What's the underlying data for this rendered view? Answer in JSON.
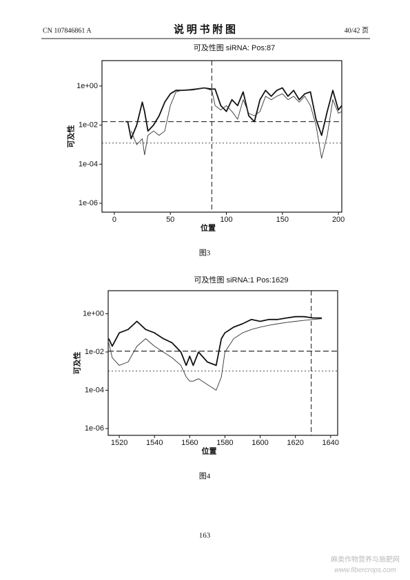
{
  "header": {
    "left": "CN 107846861 A",
    "title": "说 明 书 附 图",
    "right": "40/42 页"
  },
  "chart_data": [
    {
      "type": "line",
      "title": "可及性图 siRNA: Pos:87",
      "xlabel": "位置",
      "ylabel": "可及性",
      "log_y": true,
      "xlim": [
        -11,
        203
      ],
      "ylim": [
        3.5e-07,
        20
      ],
      "xticks": [
        0,
        50,
        100,
        150,
        200
      ],
      "yticks": [
        {
          "value": 1e-06,
          "label": "1e-06"
        },
        {
          "value": 0.0001,
          "label": "1e-04"
        },
        {
          "value": 0.01,
          "label": "1e-02"
        },
        {
          "value": 1,
          "label": "1e+00"
        }
      ],
      "vline": 87,
      "hlines": [
        0.015,
        0.0012
      ],
      "x": [
        10,
        12,
        15,
        20,
        25,
        27,
        30,
        35,
        40,
        45,
        50,
        55,
        60,
        70,
        80,
        87,
        90,
        95,
        100,
        105,
        110,
        115,
        120,
        125,
        130,
        135,
        140,
        145,
        150,
        155,
        160,
        165,
        170,
        175,
        180,
        185,
        190,
        195,
        200,
        203
      ],
      "series": [
        {
          "color": "#111111",
          "values": [
            0.015,
            0.015,
            0.002,
            0.01,
            0.15,
            0.05,
            0.005,
            0.01,
            0.03,
            0.15,
            0.4,
            0.6,
            0.6,
            0.65,
            0.8,
            0.7,
            0.7,
            0.1,
            0.05,
            0.2,
            0.1,
            0.5,
            0.03,
            0.015,
            0.2,
            0.6,
            0.3,
            0.6,
            0.8,
            0.3,
            0.6,
            0.2,
            0.4,
            0.5,
            0.02,
            0.003,
            0.05,
            0.6,
            0.06,
            0.1
          ]
        },
        {
          "color": "#333333",
          "values": [
            null,
            null,
            0.005,
            0.001,
            0.002,
            0.0003,
            0.003,
            0.005,
            0.003,
            0.005,
            0.1,
            0.5,
            0.6,
            0.7,
            0.8,
            0.6,
            0.1,
            0.06,
            0.1,
            0.05,
            0.02,
            0.2,
            0.04,
            0.03,
            0.05,
            0.3,
            0.2,
            0.3,
            0.4,
            0.2,
            0.3,
            0.15,
            0.3,
            0.1,
            0.01,
            0.0002,
            0.003,
            0.2,
            0.04,
            0.05
          ]
        }
      ]
    },
    {
      "type": "line",
      "title": "可及性图 siRNA:1 Pos:1629",
      "xlabel": "位置",
      "ylabel": "可及性",
      "log_y": true,
      "xlim": [
        1513.7,
        1644
      ],
      "ylim": [
        4.4e-07,
        16
      ],
      "xticks": [
        1520,
        1540,
        1560,
        1580,
        1600,
        1620,
        1640
      ],
      "yticks": [
        {
          "value": 1e-06,
          "label": "1e-06"
        },
        {
          "value": 0.0001,
          "label": "1e-04"
        },
        {
          "value": 0.01,
          "label": "1e-02"
        },
        {
          "value": 1,
          "label": "1e+00"
        }
      ],
      "vline": 1629,
      "hlines": [
        0.011,
        0.001
      ],
      "x": [
        1514,
        1516,
        1520,
        1525,
        1530,
        1535,
        1540,
        1545,
        1550,
        1555,
        1558,
        1560,
        1562,
        1565,
        1570,
        1575,
        1578,
        1580,
        1585,
        1590,
        1595,
        1600,
        1605,
        1610,
        1615,
        1620,
        1625,
        1630,
        1635
      ],
      "series": [
        {
          "color": "#111111",
          "values": [
            0.05,
            0.02,
            0.1,
            0.15,
            0.4,
            0.15,
            0.1,
            0.05,
            0.03,
            0.01,
            0.002,
            0.006,
            0.002,
            0.01,
            0.003,
            0.002,
            0.05,
            0.1,
            0.2,
            0.3,
            0.5,
            0.4,
            0.5,
            0.5,
            0.6,
            0.7,
            0.7,
            0.6,
            0.6
          ]
        },
        {
          "color": "#333333",
          "values": [
            0.03,
            0.005,
            0.002,
            0.003,
            0.02,
            0.05,
            0.02,
            0.01,
            0.005,
            0.002,
            0.0005,
            0.0003,
            0.0003,
            0.0004,
            0.0002,
            0.0001,
            0.0005,
            0.01,
            0.05,
            0.1,
            0.15,
            0.2,
            0.25,
            0.3,
            0.35,
            0.4,
            0.45,
            0.5,
            0.55
          ]
        }
      ]
    }
  ],
  "captions": [
    "图3",
    "图4"
  ],
  "page_number": "163",
  "watermark": {
    "name": "麻类作物营养与施肥网",
    "url": "www.fibercrops.com"
  }
}
